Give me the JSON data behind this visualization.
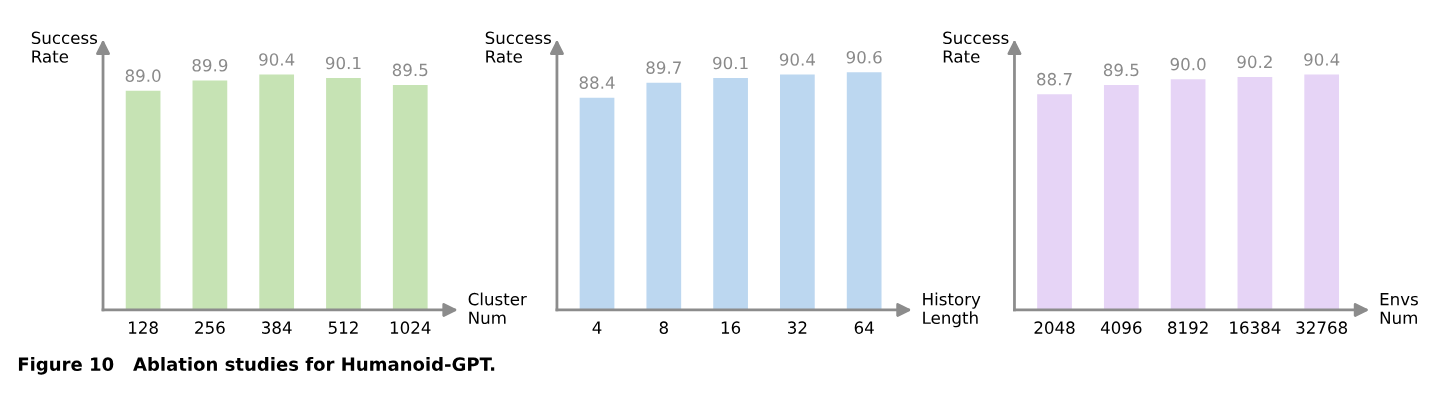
{
  "chart_data": [
    {
      "type": "bar",
      "ylabel": "Success Rate",
      "xlabel": "Cluster Num",
      "categories": [
        "128",
        "256",
        "384",
        "512",
        "1024"
      ],
      "values": [
        89.0,
        89.9,
        90.4,
        90.1,
        89.5
      ],
      "value_labels": [
        "89.0",
        "89.9",
        "90.4",
        "90.1",
        "89.5"
      ],
      "color": "#c6e3b4",
      "ylim": [
        70,
        93
      ],
      "tick_labels": "x",
      "grid": false,
      "annotations": [
        "Figure 10   Ablation studies for Humanoid-GPT."
      ]
    },
    {
      "type": "bar",
      "ylabel": "Success Rate",
      "xlabel": "History Length",
      "categories": [
        "4",
        "8",
        "16",
        "32",
        "64"
      ],
      "values": [
        88.4,
        89.7,
        90.1,
        90.4,
        90.6
      ],
      "value_labels": [
        "88.4",
        "89.7",
        "90.1",
        "90.4",
        "90.6"
      ],
      "color": "#bcd7f0",
      "ylim": [
        70,
        93
      ],
      "tick_labels": "x",
      "grid": false
    },
    {
      "type": "bar",
      "ylabel": "Success Rate",
      "xlabel": "Envs Num",
      "categories": [
        "2048",
        "4096",
        "8192",
        "16384",
        "32768"
      ],
      "values": [
        88.7,
        89.5,
        90.0,
        90.2,
        90.4
      ],
      "value_labels": [
        "88.7",
        "89.5",
        "90.0",
        "90.2",
        "90.4"
      ],
      "color": "#e6d4f6",
      "ylim": [
        70,
        93
      ],
      "tick_labels": "x",
      "grid": false
    }
  ]
}
